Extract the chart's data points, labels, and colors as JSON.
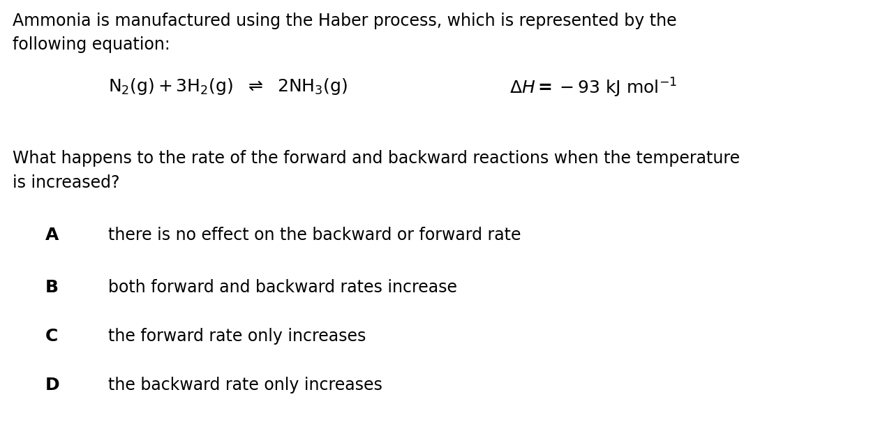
{
  "background_color": "#ffffff",
  "figsize": [
    12.58,
    6.35
  ],
  "dpi": 100,
  "intro_text_line1": "Ammonia is manufactured using the Haber process, which is represented by the",
  "intro_text_line2": "following equation:",
  "question_text_line1": "What happens to the rate of the forward and backward reactions when the temperature",
  "question_text_line2": "is increased?",
  "options": [
    {
      "label": "A",
      "text": "there is no effect on the backward or forward rate"
    },
    {
      "label": "B",
      "text": "both forward and backward rates increase"
    },
    {
      "label": "C",
      "text": "the forward rate only increases"
    },
    {
      "label": "D",
      "text": "the backward rate only increases"
    }
  ],
  "text_color": "#000000",
  "font_size_body": 17.0,
  "font_size_option_label": 18.0,
  "font_size_equation": 17.0
}
